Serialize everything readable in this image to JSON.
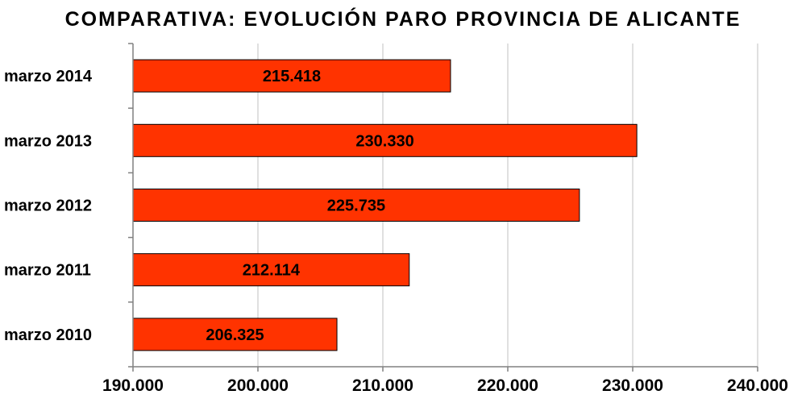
{
  "chart_data": {
    "type": "bar",
    "orientation": "horizontal",
    "title": "COMPARATIVA: EVOLUCIÓN PARO PROVINCIA DE ALICANTE",
    "xlabel": "",
    "ylabel": "",
    "categories": [
      "marzo 2014",
      "marzo 2013",
      "marzo 2012",
      "marzo 2011",
      "marzo 2010"
    ],
    "values": [
      215418,
      230330,
      225735,
      212114,
      206325
    ],
    "value_labels": [
      "215.418",
      "230.330",
      "225.735",
      "212.114",
      "206.325"
    ],
    "xlim": [
      190000,
      240000
    ],
    "x_ticks": [
      190000,
      200000,
      210000,
      220000,
      230000,
      240000
    ],
    "x_tick_labels": [
      "190.000",
      "200.000",
      "210.000",
      "220.000",
      "230.000",
      "240.000"
    ],
    "grid": "vertical",
    "legend": "none",
    "colors": {
      "bar": "#ff3300",
      "bar_border": "#000000",
      "grid": "#c0c0c0",
      "axis": "#808080"
    }
  }
}
